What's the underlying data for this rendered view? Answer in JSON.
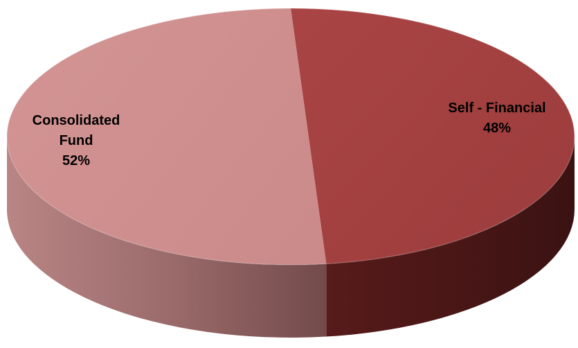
{
  "chart_data": {
    "type": "pie",
    "style": "3d",
    "slices": [
      {
        "label": [
          "Self - Financial"
        ],
        "value": 48,
        "percent_label": "48%",
        "color": "#A54141"
      },
      {
        "label": [
          "Consolidated",
          "Fund"
        ],
        "value": 52,
        "percent_label": "52%",
        "color": "#CF8E8E"
      }
    ],
    "legend": "none"
  }
}
